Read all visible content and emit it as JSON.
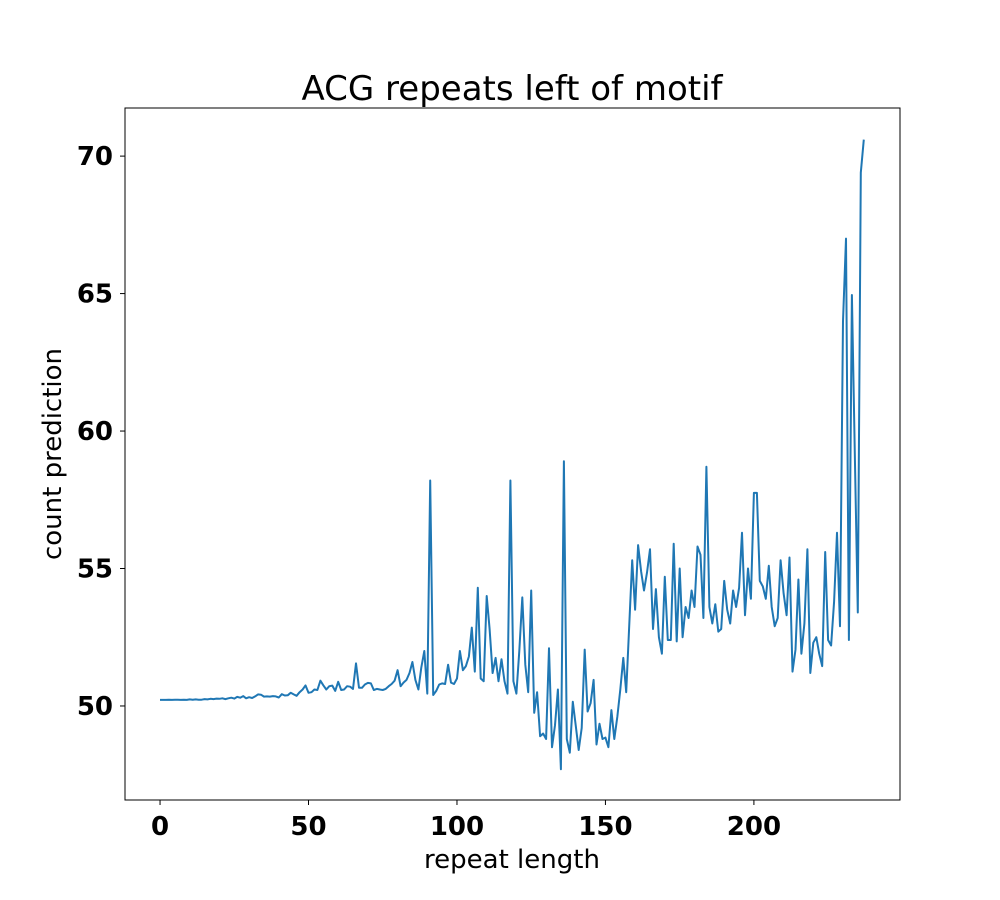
{
  "chart_data": {
    "type": "line",
    "title": "ACG repeats left of motif",
    "xlabel": "repeat length",
    "ylabel": "count prediction",
    "xlim": [
      -11.8,
      249.2
    ],
    "ylim": [
      46.58,
      71.75
    ],
    "xticks": [
      0,
      50,
      100,
      150,
      200
    ],
    "yticks": [
      50,
      55,
      60,
      65,
      70
    ],
    "grid": false,
    "line_color": "#1f77b4",
    "series": [
      {
        "x_start": 0,
        "x_step": 1,
        "values": [
          50.22,
          50.22,
          50.22,
          50.23,
          50.22,
          50.23,
          50.23,
          50.22,
          50.23,
          50.22,
          50.24,
          50.23,
          50.24,
          50.23,
          50.23,
          50.25,
          50.24,
          50.26,
          50.25,
          50.27,
          50.26,
          50.28,
          50.25,
          50.28,
          50.3,
          50.27,
          50.33,
          50.3,
          50.36,
          50.28,
          50.32,
          50.29,
          50.35,
          50.42,
          50.41,
          50.34,
          50.35,
          50.34,
          50.36,
          50.35,
          50.31,
          50.43,
          50.38,
          50.39,
          50.48,
          50.42,
          50.37,
          50.5,
          50.6,
          50.75,
          50.48,
          50.5,
          50.6,
          50.58,
          50.92,
          50.75,
          50.6,
          50.72,
          50.74,
          50.55,
          50.88,
          50.58,
          50.6,
          50.72,
          50.7,
          50.62,
          51.55,
          50.66,
          50.66,
          50.78,
          50.84,
          50.82,
          50.58,
          50.62,
          50.6,
          50.58,
          50.62,
          50.72,
          50.8,
          50.92,
          51.3,
          50.72,
          50.85,
          50.95,
          51.2,
          51.6,
          50.95,
          50.6,
          51.4,
          52.0,
          50.45,
          58.2,
          50.4,
          50.55,
          50.78,
          50.82,
          50.8,
          51.5,
          50.85,
          50.8,
          51.0,
          52.0,
          51.3,
          51.45,
          51.8,
          52.85,
          51.25,
          54.3,
          51.0,
          50.9,
          54.0,
          52.8,
          51.2,
          51.75,
          50.9,
          51.7,
          50.9,
          50.45,
          58.2,
          50.9,
          50.45,
          52.0,
          53.95,
          51.5,
          50.5,
          54.2,
          49.75,
          50.5,
          48.9,
          49.0,
          48.8,
          52.1,
          48.5,
          49.3,
          50.6,
          47.7,
          58.9,
          48.8,
          48.3,
          50.15,
          49.3,
          48.4,
          49.2,
          52.05,
          49.8,
          50.1,
          50.95,
          48.6,
          49.35,
          48.8,
          48.85,
          48.5,
          49.85,
          48.8,
          49.6,
          50.6,
          51.75,
          50.5,
          52.9,
          55.3,
          53.5,
          55.85,
          54.9,
          54.2,
          54.85,
          55.7,
          52.8,
          54.25,
          52.5,
          51.9,
          54.7,
          52.4,
          52.4,
          55.9,
          52.35,
          55.0,
          52.5,
          53.6,
          53.2,
          54.2,
          53.6,
          55.8,
          55.5,
          53.2,
          58.7,
          53.6,
          53.0,
          53.7,
          52.7,
          52.8,
          54.55,
          53.5,
          53.0,
          54.2,
          53.6,
          54.3,
          56.3,
          53.3,
          55.0,
          53.9,
          57.75,
          57.75,
          54.55,
          54.35,
          53.9,
          55.1,
          53.6,
          52.9,
          53.2,
          55.3,
          54.1,
          53.3,
          55.4,
          51.25,
          52.05,
          54.6,
          51.9,
          53.0,
          55.7,
          51.2,
          52.3,
          52.5,
          51.9,
          51.45,
          55.6,
          52.4,
          52.2,
          53.8,
          56.3,
          52.9,
          64.0,
          67.0,
          52.4,
          64.95,
          59.0,
          53.4,
          69.4,
          70.6
        ]
      }
    ]
  }
}
